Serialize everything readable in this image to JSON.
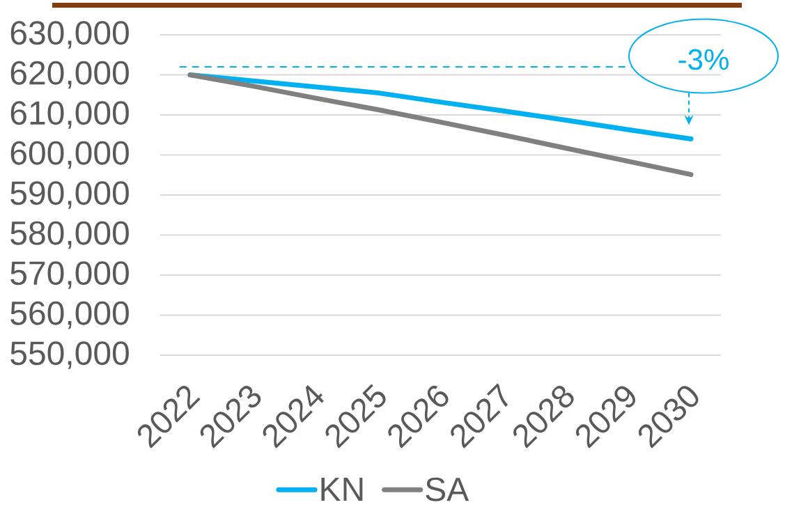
{
  "chart_data": {
    "type": "line",
    "categories": [
      "2022",
      "2023",
      "2024",
      "2025",
      "2026",
      "2027",
      "2028",
      "2029",
      "2030"
    ],
    "series": [
      {
        "name": "KN",
        "color": "#00b0f0",
        "values": [
          620000,
          618500,
          617000,
          615500,
          613200,
          611000,
          608700,
          606300,
          604000
        ]
      },
      {
        "name": "SA",
        "color": "#808080",
        "values": [
          620000,
          617200,
          614200,
          611300,
          608200,
          605000,
          601700,
          598400,
          595100
        ]
      }
    ],
    "ylim": [
      550000,
      630000
    ],
    "yticks": [
      {
        "value": 550000,
        "label": "550,000"
      },
      {
        "value": 560000,
        "label": "560,000"
      },
      {
        "value": 570000,
        "label": "570,000"
      },
      {
        "value": 580000,
        "label": "580,000"
      },
      {
        "value": 590000,
        "label": "590,000"
      },
      {
        "value": 600000,
        "label": "600,000"
      },
      {
        "value": 610000,
        "label": "610,000"
      },
      {
        "value": 620000,
        "label": "620,000"
      },
      {
        "value": 630000,
        "label": "630,000"
      }
    ],
    "grid": "y",
    "legend": "bottom",
    "ref_lines": [
      {
        "axis": "y",
        "value": 622000,
        "color": "#00b0f0",
        "line_style": "dashed"
      }
    ],
    "annotations": [
      {
        "text": "-3%",
        "x": "2030",
        "y": 604000
      }
    ]
  }
}
